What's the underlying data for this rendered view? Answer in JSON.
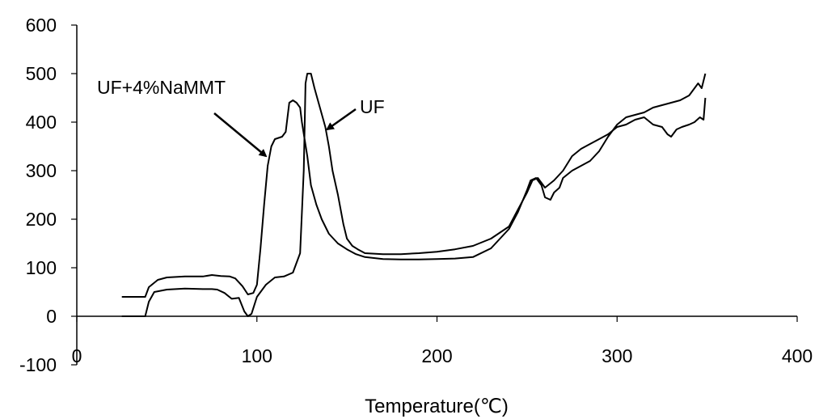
{
  "chart_data": {
    "type": "line",
    "xlabel": "Temperature(℃)",
    "ylabel": "",
    "xlim": [
      0,
      400
    ],
    "ylim": [
      -100,
      600
    ],
    "x_ticks": [
      0,
      100,
      200,
      300,
      400
    ],
    "y_ticks": [
      -100,
      0,
      100,
      200,
      300,
      400,
      500,
      600
    ],
    "x_tick_labels": [
      "0",
      "100",
      "200",
      "300",
      "400"
    ],
    "y_tick_labels": [
      "-100",
      "0",
      "100",
      "200",
      "300",
      "400",
      "500",
      "600"
    ],
    "grid": false,
    "legend": "none",
    "annotations": [
      {
        "text": "UF+4%NaMMT",
        "series_index": 0,
        "target": [
          105,
          330
        ]
      },
      {
        "text": "UF",
        "series_index": 1,
        "target": [
          139,
          385
        ]
      }
    ],
    "series": [
      {
        "color": "#000000",
        "points": [
          [
            25,
            40
          ],
          [
            38,
            40
          ],
          [
            40,
            60
          ],
          [
            45,
            75
          ],
          [
            50,
            80
          ],
          [
            60,
            82
          ],
          [
            70,
            82
          ],
          [
            75,
            85
          ],
          [
            80,
            83
          ],
          [
            85,
            82
          ],
          [
            88,
            78
          ],
          [
            92,
            62
          ],
          [
            95,
            45
          ],
          [
            98,
            48
          ],
          [
            100,
            65
          ],
          [
            102,
            140
          ],
          [
            104,
            230
          ],
          [
            106,
            310
          ],
          [
            108,
            350
          ],
          [
            110,
            365
          ],
          [
            114,
            370
          ],
          [
            116,
            380
          ],
          [
            118,
            440
          ],
          [
            120,
            445
          ],
          [
            122,
            440
          ],
          [
            124,
            430
          ],
          [
            125,
            400
          ],
          [
            128,
            330
          ],
          [
            130,
            270
          ],
          [
            133,
            230
          ],
          [
            136,
            200
          ],
          [
            140,
            170
          ],
          [
            145,
            150
          ],
          [
            150,
            138
          ],
          [
            155,
            128
          ],
          [
            160,
            122
          ],
          [
            170,
            118
          ],
          [
            180,
            117
          ],
          [
            190,
            117
          ],
          [
            200,
            118
          ],
          [
            210,
            119
          ],
          [
            220,
            122
          ],
          [
            230,
            140
          ],
          [
            240,
            180
          ],
          [
            245,
            215
          ],
          [
            250,
            260
          ],
          [
            252,
            280
          ],
          [
            255,
            285
          ],
          [
            258,
            270
          ],
          [
            260,
            245
          ],
          [
            263,
            240
          ],
          [
            265,
            255
          ],
          [
            268,
            265
          ],
          [
            270,
            285
          ],
          [
            275,
            300
          ],
          [
            280,
            310
          ],
          [
            285,
            320
          ],
          [
            290,
            340
          ],
          [
            295,
            370
          ],
          [
            300,
            395
          ],
          [
            305,
            410
          ],
          [
            310,
            415
          ],
          [
            315,
            420
          ],
          [
            320,
            430
          ],
          [
            325,
            435
          ],
          [
            330,
            440
          ],
          [
            335,
            445
          ],
          [
            340,
            455
          ],
          [
            345,
            480
          ],
          [
            347,
            470
          ],
          [
            349,
            500
          ]
        ]
      },
      {
        "color": "#000000",
        "points": [
          [
            25,
            0
          ],
          [
            38,
            0
          ],
          [
            40,
            30
          ],
          [
            43,
            50
          ],
          [
            50,
            55
          ],
          [
            60,
            57
          ],
          [
            70,
            56
          ],
          [
            75,
            56
          ],
          [
            78,
            55
          ],
          [
            82,
            48
          ],
          [
            86,
            36
          ],
          [
            90,
            38
          ],
          [
            93,
            10
          ],
          [
            95,
            0
          ],
          [
            97,
            5
          ],
          [
            100,
            40
          ],
          [
            105,
            65
          ],
          [
            110,
            80
          ],
          [
            115,
            82
          ],
          [
            120,
            90
          ],
          [
            124,
            130
          ],
          [
            126,
            300
          ],
          [
            127,
            480
          ],
          [
            128,
            500
          ],
          [
            130,
            500
          ],
          [
            132,
            470
          ],
          [
            135,
            430
          ],
          [
            138,
            390
          ],
          [
            140,
            350
          ],
          [
            142,
            300
          ],
          [
            145,
            250
          ],
          [
            148,
            190
          ],
          [
            150,
            160
          ],
          [
            153,
            145
          ],
          [
            156,
            138
          ],
          [
            160,
            130
          ],
          [
            170,
            128
          ],
          [
            180,
            128
          ],
          [
            190,
            130
          ],
          [
            200,
            133
          ],
          [
            210,
            138
          ],
          [
            220,
            145
          ],
          [
            230,
            160
          ],
          [
            240,
            185
          ],
          [
            245,
            220
          ],
          [
            250,
            255
          ],
          [
            253,
            280
          ],
          [
            256,
            285
          ],
          [
            258,
            275
          ],
          [
            260,
            265
          ],
          [
            265,
            280
          ],
          [
            270,
            300
          ],
          [
            275,
            330
          ],
          [
            280,
            345
          ],
          [
            285,
            355
          ],
          [
            290,
            365
          ],
          [
            295,
            375
          ],
          [
            300,
            390
          ],
          [
            305,
            395
          ],
          [
            310,
            405
          ],
          [
            315,
            410
          ],
          [
            320,
            395
          ],
          [
            325,
            390
          ],
          [
            328,
            375
          ],
          [
            330,
            370
          ],
          [
            333,
            385
          ],
          [
            336,
            390
          ],
          [
            340,
            395
          ],
          [
            343,
            400
          ],
          [
            346,
            410
          ],
          [
            348,
            405
          ],
          [
            349,
            450
          ]
        ]
      }
    ]
  }
}
